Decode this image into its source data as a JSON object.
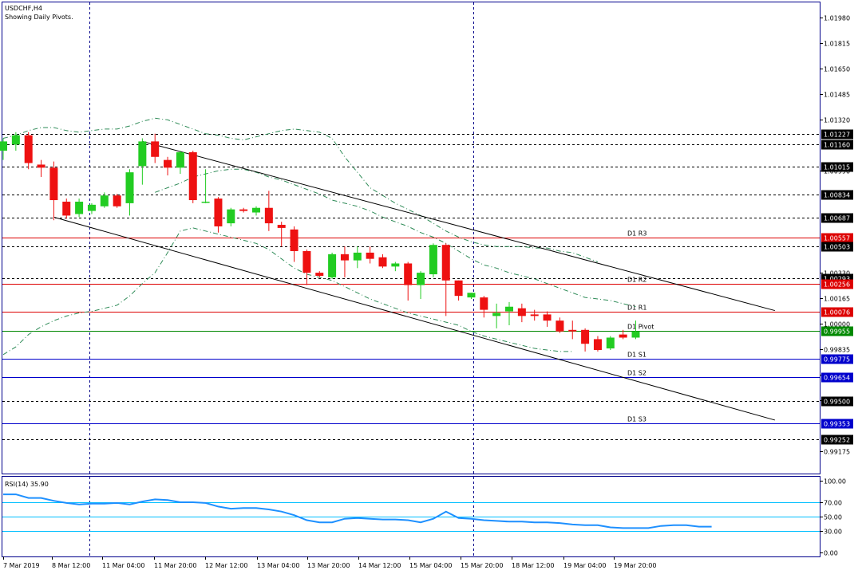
{
  "window": {
    "symbol_title": "USDCHF,H4",
    "subtitle": "Showing Daily Pivots."
  },
  "colors": {
    "bull": "#22cc22",
    "bear": "#ee1111",
    "frame": "#00008b",
    "pivot_line": "#008800",
    "resistance_line": "#dd0000",
    "support_line": "#0000cc",
    "dotted_level": "#000000",
    "envelope": "#2e8b57",
    "rsi_line": "#1e90ff",
    "rsi_level": "#00bfff",
    "tag_bg": "#000000",
    "tag_text": "#ffffff",
    "resistance_tag_bg": "#dd0000",
    "support_tag_bg": "#0000cc",
    "pivot_tag_bg": "#008800"
  },
  "chart_data": [
    {
      "type": "candlestick",
      "title": "USDCHF,H4",
      "subtitle": "Showing Daily Pivots.",
      "ylim": [
        0.9903,
        1.0208
      ],
      "y_ticks": [
        "1.01980",
        "1.01815",
        "1.01650",
        "1.01485",
        "1.01320",
        "1.00990",
        "1.00330",
        "1.00165",
        "1.00000",
        "0.99835",
        "0.99670",
        "0.99505",
        "0.99175"
      ],
      "x_tick_labels": [
        "7 Mar 2019",
        "8 Mar 12:00",
        "11 Mar 04:00",
        "11 Mar 20:00",
        "12 Mar 12:00",
        "13 Mar 04:00",
        "13 Mar 20:00",
        "14 Mar 12:00",
        "15 Mar 04:00",
        "15 Mar 20:00",
        "18 Mar 12:00",
        "19 Mar 04:00",
        "19 Mar 20:00"
      ],
      "candles": [
        {
          "o": 1.0112,
          "h": 1.012,
          "l": 1.0106,
          "c": 1.0118
        },
        {
          "o": 1.0116,
          "h": 1.0124,
          "l": 1.0112,
          "c": 1.0122
        },
        {
          "o": 1.0122,
          "h": 1.0124,
          "l": 1.01,
          "c": 1.0104
        },
        {
          "o": 1.0103,
          "h": 1.0106,
          "l": 1.0095,
          "c": 1.0101
        },
        {
          "o": 1.0101,
          "h": 1.0105,
          "l": 1.0067,
          "c": 1.008
        },
        {
          "o": 1.0079,
          "h": 1.0081,
          "l": 1.0068,
          "c": 1.007
        },
        {
          "o": 1.0071,
          "h": 1.0081,
          "l": 1.0069,
          "c": 1.0079
        },
        {
          "o": 1.0073,
          "h": 1.0078,
          "l": 1.0071,
          "c": 1.0077
        },
        {
          "o": 1.0076,
          "h": 1.0085,
          "l": 1.0075,
          "c": 1.0083
        },
        {
          "o": 1.0083,
          "h": 1.0084,
          "l": 1.0075,
          "c": 1.0076
        },
        {
          "o": 1.0078,
          "h": 1.01,
          "l": 1.007,
          "c": 1.0098
        },
        {
          "o": 1.0102,
          "h": 1.012,
          "l": 1.009,
          "c": 1.0118
        },
        {
          "o": 1.0118,
          "h": 1.0123,
          "l": 1.0104,
          "c": 1.0108
        },
        {
          "o": 1.0106,
          "h": 1.0108,
          "l": 1.0096,
          "c": 1.0101
        },
        {
          "o": 1.0101,
          "h": 1.0112,
          "l": 1.0097,
          "c": 1.0111
        },
        {
          "o": 1.0111,
          "h": 1.0112,
          "l": 1.0078,
          "c": 1.008
        },
        {
          "o": 1.0079,
          "h": 1.01,
          "l": 1.0078,
          "c": 1.0079
        },
        {
          "o": 1.0081,
          "h": 1.0082,
          "l": 1.0059,
          "c": 1.0063
        },
        {
          "o": 1.0065,
          "h": 1.0075,
          "l": 1.0063,
          "c": 1.0074
        },
        {
          "o": 1.0074,
          "h": 1.0075,
          "l": 1.0072,
          "c": 1.0073
        },
        {
          "o": 1.0072,
          "h": 1.0076,
          "l": 1.007,
          "c": 1.0075
        },
        {
          "o": 1.0075,
          "h": 1.0086,
          "l": 1.006,
          "c": 1.0065
        },
        {
          "o": 1.0064,
          "h": 1.0066,
          "l": 1.005,
          "c": 1.0062
        },
        {
          "o": 1.0061,
          "h": 1.0063,
          "l": 1.004,
          "c": 1.0047
        },
        {
          "o": 1.0047,
          "h": 1.0048,
          "l": 1.0025,
          "c": 1.0033
        },
        {
          "o": 1.0033,
          "h": 1.0034,
          "l": 1.003,
          "c": 1.0031
        },
        {
          "o": 1.003,
          "h": 1.0046,
          "l": 1.0029,
          "c": 1.0045
        },
        {
          "o": 1.0045,
          "h": 1.005,
          "l": 1.003,
          "c": 1.0041
        },
        {
          "o": 1.0041,
          "h": 1.005,
          "l": 1.0036,
          "c": 1.0046
        },
        {
          "o": 1.0046,
          "h": 1.005,
          "l": 1.0039,
          "c": 1.0042
        },
        {
          "o": 1.0043,
          "h": 1.0045,
          "l": 1.0036,
          "c": 1.0037
        },
        {
          "o": 1.0037,
          "h": 1.004,
          "l": 1.0034,
          "c": 1.0039
        },
        {
          "o": 1.0039,
          "h": 1.004,
          "l": 1.0015,
          "c": 1.0025
        },
        {
          "o": 1.0025,
          "h": 1.0034,
          "l": 1.0016,
          "c": 1.0033
        },
        {
          "o": 1.0032,
          "h": 1.0052,
          "l": 1.003,
          "c": 1.0051
        },
        {
          "o": 1.0051,
          "h": 1.0052,
          "l": 1.0005,
          "c": 1.0028
        },
        {
          "o": 1.0028,
          "h": 1.0028,
          "l": 1.0015,
          "c": 1.0018
        },
        {
          "o": 1.0017,
          "h": 1.002,
          "l": 1.0016,
          "c": 1.002
        },
        {
          "o": 1.0017,
          "h": 1.0018,
          "l": 1.0004,
          "c": 1.0009
        },
        {
          "o": 1.0005,
          "h": 1.0013,
          "l": 0.9997,
          "c": 1.0007
        },
        {
          "o": 1.0008,
          "h": 1.0014,
          "l": 0.9999,
          "c": 1.0011
        },
        {
          "o": 1.001,
          "h": 1.0013,
          "l": 1.0001,
          "c": 1.0005
        },
        {
          "o": 1.0006,
          "h": 1.0009,
          "l": 1.0002,
          "c": 1.0005
        },
        {
          "o": 1.0006,
          "h": 1.0008,
          "l": 0.9998,
          "c": 1.0002
        },
        {
          "o": 1.0002,
          "h": 1.0004,
          "l": 0.9994,
          "c": 0.9995
        },
        {
          "o": 0.9996,
          "h": 1.0002,
          "l": 0.999,
          "c": 0.9995
        },
        {
          "o": 0.9996,
          "h": 0.9997,
          "l": 0.9982,
          "c": 0.9987
        },
        {
          "o": 0.999,
          "h": 0.9992,
          "l": 0.9982,
          "c": 0.9983
        },
        {
          "o": 0.9984,
          "h": 0.9992,
          "l": 0.9983,
          "c": 0.9991
        },
        {
          "o": 0.9993,
          "h": 0.9996,
          "l": 0.999,
          "c": 0.9991
        },
        {
          "o": 0.9991,
          "h": 1.0002,
          "l": 0.999,
          "c": 0.9995
        }
      ],
      "envelope_upper": [
        1.012,
        1.0122,
        1.0125,
        1.0127,
        1.0127,
        1.0125,
        1.0124,
        1.0125,
        1.0126,
        1.0126,
        1.0128,
        1.0131,
        1.0133,
        1.0132,
        1.0129,
        1.0126,
        1.0123,
        1.0122,
        1.012,
        1.0119,
        1.0121,
        1.0123,
        1.0125,
        1.0126,
        1.0125,
        1.0124,
        1.012,
        1.0108,
        1.0098,
        1.0088,
        1.0083,
        1.0078,
        1.0074,
        1.007,
        1.0065,
        1.006,
        1.0056,
        1.0053,
        1.0051,
        1.005,
        1.005,
        1.005,
        1.0049,
        1.0049,
        1.0047,
        1.0046,
        1.0043,
        1.004
      ],
      "envelope_middle": [
        1.0085,
        1.0088,
        1.0091,
        1.0095,
        1.0097,
        1.0099,
        1.01,
        1.01,
        1.0098,
        1.0095,
        1.0093,
        1.009,
        1.0087,
        1.0084,
        1.008,
        1.0078,
        1.0076,
        1.0073,
        1.0069,
        1.0066,
        1.0063,
        1.0059,
        1.0056,
        1.0052,
        1.0047,
        1.0042,
        1.0038,
        1.0036,
        1.0033,
        1.0031,
        1.0029,
        1.0026,
        1.0023,
        1.002,
        1.0017,
        1.0016,
        1.0015,
        1.0013,
        1.0011
      ],
      "envelope_lower": [
        0.998,
        0.9985,
        0.9993,
        0.9998,
        1.0002,
        1.0005,
        1.0007,
        1.0008,
        1.001,
        1.0012,
        1.0018,
        1.0026,
        1.0033,
        1.0046,
        1.006,
        1.0062,
        1.006,
        1.0058,
        1.0056,
        1.0054,
        1.0052,
        1.0048,
        1.0042,
        1.0036,
        1.0032,
        1.003,
        1.0028,
        1.0024,
        1.002,
        1.0016,
        1.0013,
        1.001,
        1.0007,
        1.0005,
        1.0003,
        1.0001,
        0.9999,
        0.9995,
        0.9992,
        0.999,
        0.9988,
        0.9986,
        0.9984,
        0.9983,
        0.9982,
        0.9982
      ],
      "trend_upper": {
        "from": {
          "bar": 11,
          "price": 1.0118
        },
        "to": {
          "bar": 61,
          "price": 1.00085
        }
      },
      "trend_lower": {
        "from": {
          "bar": 4,
          "price": 1.0069
        },
        "to": {
          "bar": 61,
          "price": 0.99376
        }
      },
      "price_levels": [
        {
          "name": "",
          "value": 1.01227,
          "tag": "1.01227",
          "style": "dotted"
        },
        {
          "name": "",
          "value": 1.0116,
          "tag": "1.01160",
          "style": "dotted"
        },
        {
          "name": "",
          "value": 1.01015,
          "tag": "1.01015",
          "style": "dotted"
        },
        {
          "name": "",
          "value": 1.00834,
          "tag": "1.00834",
          "style": "dotted"
        },
        {
          "name": "",
          "value": 1.00687,
          "tag": "1.00687",
          "style": "dotted"
        },
        {
          "name": "D1 R3",
          "value": 1.00557,
          "tag": "1.00557",
          "style": "resistance"
        },
        {
          "name": "",
          "value": 1.00503,
          "tag": "1.00503",
          "style": "dotted"
        },
        {
          "name": "",
          "value": 1.00293,
          "tag": "1.00293",
          "style": "dotted"
        },
        {
          "name": "D1 R2",
          "value": 1.00256,
          "tag": "1.00256",
          "style": "resistance"
        },
        {
          "name": "D1 R1",
          "value": 1.00076,
          "tag": "1.00076",
          "style": "resistance"
        },
        {
          "name": "D1 Pivot",
          "value": 0.99955,
          "tag": "0.99955",
          "style": "pivot"
        },
        {
          "name": "D1 S1",
          "value": 0.99775,
          "tag": "0.99775",
          "style": "support"
        },
        {
          "name": "D1 S2",
          "value": 0.99654,
          "tag": "0.99654",
          "style": "support"
        },
        {
          "name": "",
          "value": 0.995,
          "tag": "0.99500",
          "style": "dotted"
        },
        {
          "name": "D1 S3",
          "value": 0.99353,
          "tag": "0.99353",
          "style": "support"
        },
        {
          "name": "",
          "value": 0.99252,
          "tag": "0.99252",
          "style": "dotted"
        }
      ],
      "current_price_tag": "0.99955",
      "vertical_separators_at_label": [
        "8 Mar 12:00",
        "15 Mar 20:00"
      ]
    },
    {
      "type": "line",
      "title": "RSI(14) 35.90",
      "ylim": [
        0,
        100
      ],
      "y_ticks": [
        "100.00",
        "70.00",
        "50.00",
        "30.00",
        "0.00"
      ],
      "levels": [
        70,
        50,
        30
      ],
      "series": [
        {
          "name": "RSI(14)",
          "values": [
            81,
            81,
            76,
            76,
            72,
            69,
            67,
            68,
            68,
            69,
            67,
            71,
            74,
            73,
            70,
            70,
            69,
            64,
            61,
            62,
            62,
            60,
            57,
            52,
            45,
            42,
            42,
            47,
            48,
            47,
            46,
            46,
            45,
            42,
            47,
            57,
            48,
            47,
            45,
            44,
            43,
            43,
            42,
            42,
            41,
            39,
            38,
            38,
            35,
            34,
            34,
            34,
            37,
            38,
            38,
            36,
            36
          ]
        }
      ]
    }
  ]
}
